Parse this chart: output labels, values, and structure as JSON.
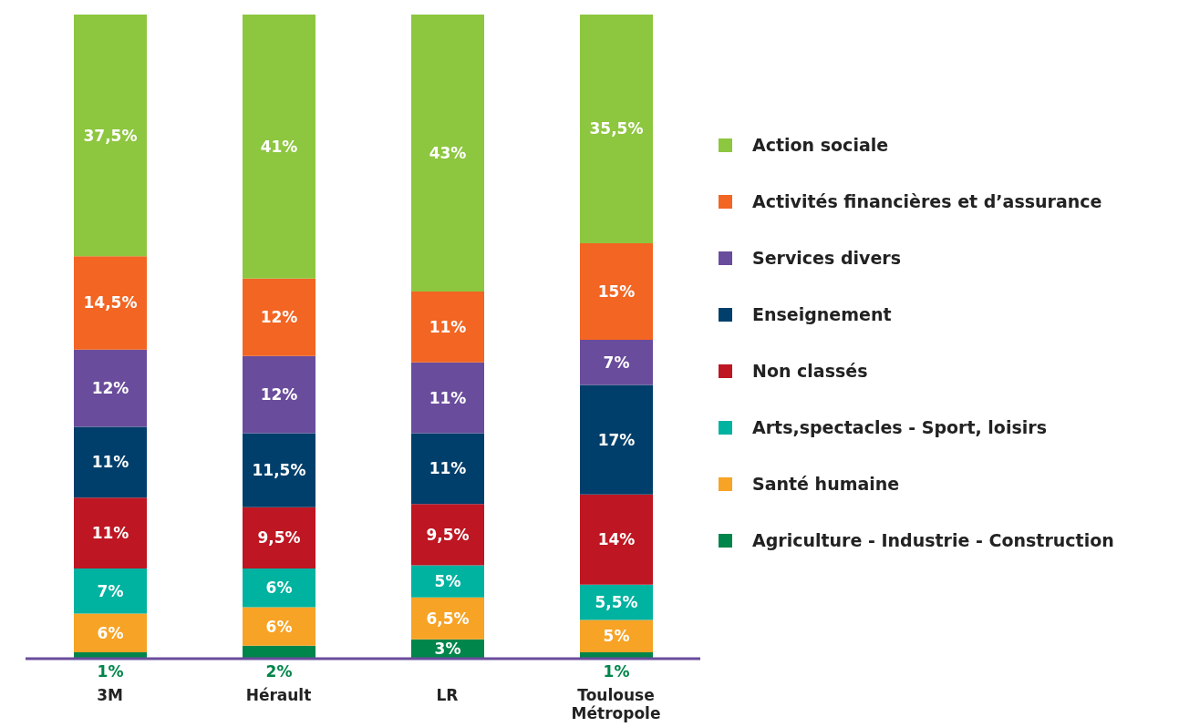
{
  "chart_data": {
    "type": "bar",
    "stacked": true,
    "legend": "right",
    "grid": false,
    "categories": [
      "3M",
      "Hérault",
      "LR",
      "Toulouse Métropole"
    ],
    "series": [
      {
        "name": "Agriculture - Industrie - Construction",
        "color": "#00854a",
        "values": [
          1,
          2,
          3,
          1
        ],
        "value_labels": [
          "1%",
          "2%",
          "3%",
          "1%"
        ]
      },
      {
        "name": "Santé humaine",
        "color": "#f7a325",
        "values": [
          6,
          6,
          6.5,
          5
        ],
        "value_labels": [
          "6%",
          "6%",
          "6,5%",
          "5%"
        ]
      },
      {
        "name": "Arts,spectacles - Sport, loisirs",
        "color": "#00b2a0",
        "values": [
          7,
          6,
          5,
          5.5
        ],
        "value_labels": [
          "7%",
          "6%",
          "5%",
          "5,5%"
        ]
      },
      {
        "name": "Non classés",
        "color": "#be1622",
        "values": [
          11,
          9.5,
          9.5,
          14
        ],
        "value_labels": [
          "11%",
          "9,5%",
          "9,5%",
          "14%"
        ]
      },
      {
        "name": "Enseignement",
        "color": "#003f6b",
        "values": [
          11,
          11.5,
          11,
          17
        ],
        "value_labels": [
          "11%",
          "11,5%",
          "11%",
          "17%"
        ]
      },
      {
        "name": "Services divers",
        "color": "#6a4c9c",
        "values": [
          12,
          12,
          11,
          7
        ],
        "value_labels": [
          "12%",
          "12%",
          "11%",
          "7%"
        ]
      },
      {
        "name": "Activités financières et d’assurance",
        "color": "#f26522",
        "values": [
          14.5,
          12,
          11,
          15
        ],
        "value_labels": [
          "14,5%",
          "12%",
          "11%",
          "15%"
        ]
      },
      {
        "name": "Action sociale",
        "color": "#8dc63f",
        "values": [
          37.5,
          41,
          43,
          35.5
        ],
        "value_labels": [
          "37,5%",
          "41%",
          "43%",
          "35,5%"
        ]
      }
    ]
  }
}
